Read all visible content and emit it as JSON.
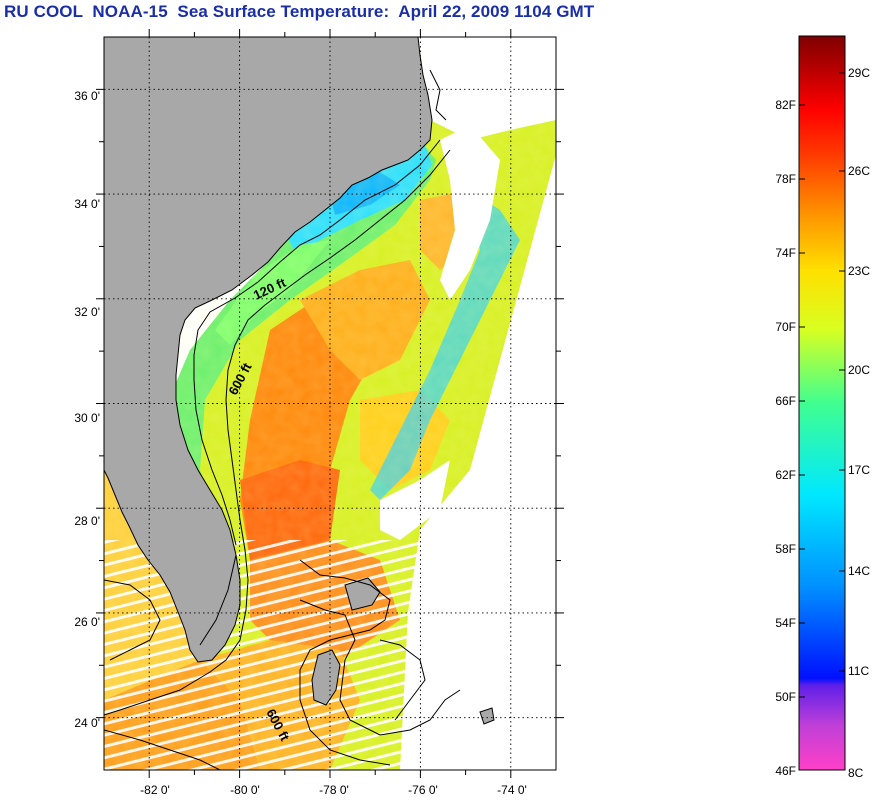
{
  "title": "RU COOL  NOAA-15  Sea Surface Temperature:  April 22, 2009 1104 GMT",
  "map": {
    "lat_range": [
      23,
      37
    ],
    "lon_range": [
      -83,
      -73
    ],
    "lat_ticks": [
      "24 0'",
      "26 0'",
      "28 0'",
      "30 0'",
      "32 0'",
      "34 0'",
      "36 0'"
    ],
    "lon_ticks": [
      "-82 0'",
      "-80 0'",
      "-78 0'",
      "-76 0'",
      "-74 0'"
    ],
    "contour_labels": [
      "120 ft",
      "600 ft",
      "600 ft"
    ],
    "colors": {
      "land": "#a8a8a8",
      "cloud": "#ffffff",
      "grid": "#000000"
    }
  },
  "colorbar": {
    "fahrenheit_labels": [
      "82F",
      "78F",
      "74F",
      "70F",
      "66F",
      "62F",
      "58F",
      "54F",
      "50F",
      "46F"
    ],
    "celsius_labels": [
      "29C",
      "26C",
      "23C",
      "20C",
      "17C",
      "14C",
      "11C",
      "8C"
    ],
    "colors": [
      "#ff40c8",
      "#9a40e0",
      "#0010ff",
      "#0090ff",
      "#00e8ff",
      "#40ff90",
      "#d8ff20",
      "#ffe000",
      "#ff9000",
      "#ff3800",
      "#ff0000",
      "#b00000",
      "#800000"
    ]
  }
}
